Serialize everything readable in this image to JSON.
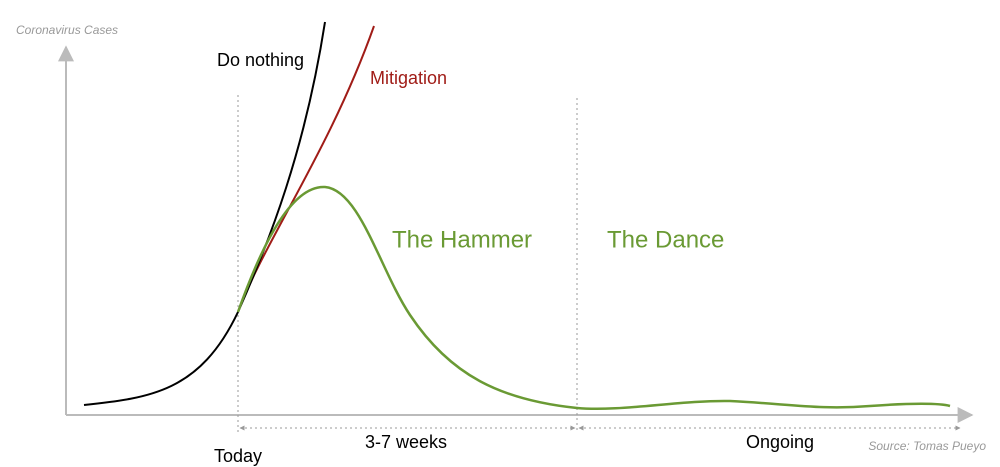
{
  "y_axis_label": "Coronavirus Cases",
  "curves": {
    "do_nothing": "Do nothing",
    "mitigation": "Mitigation"
  },
  "phases": {
    "hammer": "The Hammer",
    "dance": "The Dance"
  },
  "timeline": {
    "today": "Today",
    "hammer_duration": "3-7 weeks",
    "dance_duration": "Ongoing"
  },
  "source": "Source: Tomas Pueyo"
}
